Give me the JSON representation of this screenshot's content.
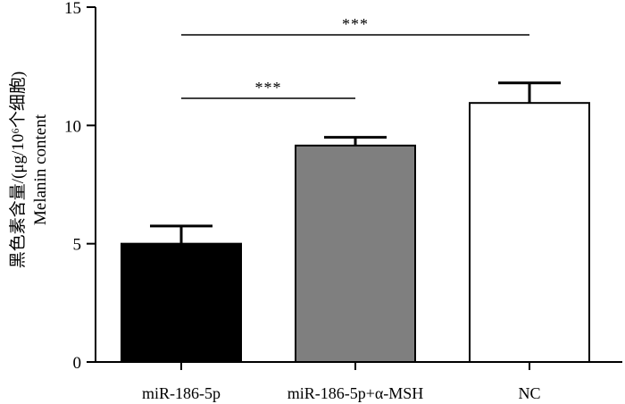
{
  "chart_data": {
    "type": "bar",
    "title": "",
    "xlabel": "",
    "ylabel_cn": "黑色素含量/(μg/10⁶个细胞)",
    "ylabel_en": "Melanin content",
    "ylim": [
      0,
      15
    ],
    "yticks": [
      "0",
      "5",
      "10",
      "15"
    ],
    "categories": [
      "miR-186-5p",
      "miR-186-5p+α-MSH",
      "NC"
    ],
    "values": [
      5.0,
      9.15,
      10.95
    ],
    "errors": [
      0.75,
      0.35,
      0.85
    ],
    "fills": [
      "#000000",
      "#7f7f7f",
      "#ffffff"
    ],
    "significance": [
      {
        "from": 0,
        "to": 1,
        "label": "***"
      },
      {
        "from": 0,
        "to": 2,
        "label": "***"
      }
    ],
    "grid": false,
    "legend": "none"
  }
}
